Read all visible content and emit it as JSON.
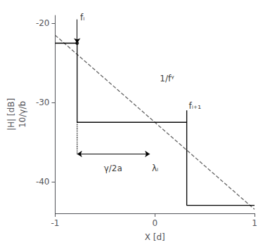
{
  "chart_data": {
    "type": "line",
    "xlabel": "X [d]",
    "ylabel": "|H| [dB]\n10/γ/b",
    "xlim": [
      -1,
      1
    ],
    "ylim": [
      -44,
      -19
    ],
    "xticks": [
      -1,
      0,
      1
    ],
    "yticks": [
      -20,
      -30,
      -40
    ],
    "grid": false,
    "series": [
      {
        "type": "line",
        "color": "#666666",
        "line_style": "dashed",
        "x": [
          -1.0,
          1.0
        ],
        "values": [
          -21.5,
          -43.5
        ]
      },
      {
        "type": "line",
        "color": "#000000",
        "line_style": "solid",
        "x": [
          -1.0,
          -0.78,
          -0.78,
          0.32,
          0.32,
          1.0
        ],
        "values": [
          -22.5,
          -22.5,
          -32.5,
          -32.5,
          -43.0,
          -43.0
        ]
      },
      {
        "type": "line",
        "color": "#000000",
        "line_style": "solid",
        "x": [
          -0.78,
          0.32
        ],
        "values": [
          -32.5,
          -32.5
        ]
      },
      {
        "type": "line",
        "color": "#000000",
        "line_style": "dotted",
        "x": [
          -0.78,
          -0.78
        ],
        "values": [
          -32.5,
          -36.5
        ]
      },
      {
        "type": "arrow",
        "color": "#000000",
        "line_style": "solid",
        "x": [
          -0.78,
          -0.78
        ],
        "values": [
          -19.5,
          -22.5
        ]
      },
      {
        "type": "line",
        "color": "#000000",
        "line_style": "solid",
        "x": [
          0.32,
          0.32
        ],
        "values": [
          -32.5,
          -31.0
        ]
      },
      {
        "type": "double_arrow",
        "color": "#000000",
        "line_style": "solid",
        "x": [
          -0.78,
          -0.05
        ],
        "values": [
          -36.5,
          -36.5
        ]
      },
      {
        "type": "scatter",
        "color": "#000000",
        "marker": "circle",
        "x": [
          -0.78
        ],
        "values": [
          -22.5
        ]
      }
    ],
    "annotations": [
      {
        "text": "fᵢ",
        "x": -0.75,
        "y": -19.8,
        "color": "#000000"
      },
      {
        "text": "fᵢ₊₁",
        "x": 0.34,
        "y": -31.0,
        "color": "#000000"
      },
      {
        "text": "1/fᵞ",
        "x": 0.05,
        "y": -27.0,
        "color": "#000000"
      },
      {
        "text": "γ/2a",
        "x": -0.42,
        "y": -37.8,
        "color": "#000000"
      },
      {
        "text": "λᵢ",
        "x": -0.03,
        "y": -37.8,
        "color": "#000000"
      }
    ]
  }
}
